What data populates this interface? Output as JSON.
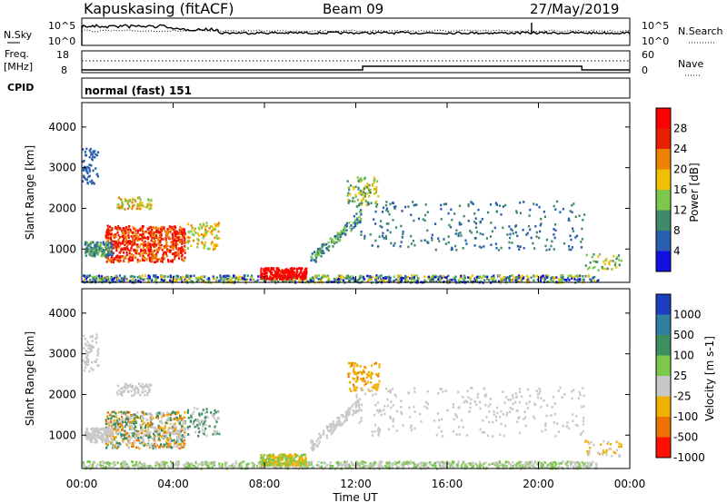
{
  "header": {
    "station": "Kapuskasing (fitACF)",
    "beam": "Beam 09",
    "date": "27/May/2019"
  },
  "status_panel": {
    "nsky_label": "N.Sky",
    "nsearch_label": "N.Search",
    "noise_ticks_left": [
      "10^5",
      "10^0"
    ],
    "noise_ticks_right": [
      "10^5",
      "10^0"
    ],
    "freq_label": "Freq.",
    "freq_unit": "[MHz]",
    "freq_ticks": [
      "18",
      "8"
    ],
    "nave_label": "Nave",
    "nave_ticks": [
      "60",
      "0"
    ],
    "cpid_label": "CPID",
    "cpid_text": "normal (fast) 151"
  },
  "chart_data": [
    {
      "type": "heatmap",
      "name": "power",
      "ylabel": "Slant Range [km]",
      "ylim": [
        180,
        4600
      ],
      "y_ticks": [
        "1000",
        "2000",
        "3000",
        "4000"
      ],
      "y_tick_values": [
        1000,
        2000,
        3000,
        4000
      ],
      "xlim": [
        0,
        24
      ],
      "colorbar_label": "Power [dB]",
      "colorbar_ticks": [
        "4",
        "8",
        "12",
        "16",
        "20",
        "24",
        "28"
      ],
      "colorbar_tick_values": [
        4,
        8,
        12,
        16,
        20,
        24,
        28
      ],
      "colorbar_range": [
        0,
        32
      ],
      "colors": [
        "#1010e0",
        "#2a5fb0",
        "#3f8a6a",
        "#7cc84a",
        "#f0c000",
        "#f08000",
        "#e82000",
        "#ff0000"
      ]
    },
    {
      "type": "heatmap",
      "name": "velocity",
      "ylabel": "Slant Range [km]",
      "ylim": [
        180,
        4600
      ],
      "y_ticks": [
        "1000",
        "2000",
        "3000",
        "4000"
      ],
      "y_tick_values": [
        1000,
        2000,
        3000,
        4000
      ],
      "xlim": [
        0,
        24
      ],
      "colorbar_label": "Velocity [m s-1]",
      "colorbar_ticks": [
        "1000",
        "500",
        "100",
        "25",
        "-25",
        "-100",
        "-500",
        "-1000"
      ],
      "colors": [
        "#1a3fc0",
        "#2e7fa0",
        "#3d8f5f",
        "#7cc84a",
        "#c8c8c8",
        "#f0b000",
        "#f07000",
        "#ff1000"
      ]
    }
  ],
  "x_axis": {
    "label": "Time UT",
    "ticks": [
      "00:00",
      "04:00",
      "08:00",
      "12:00",
      "16:00",
      "20:00",
      "00:00"
    ],
    "tick_values": [
      0,
      4,
      8,
      12,
      16,
      20,
      24
    ]
  }
}
